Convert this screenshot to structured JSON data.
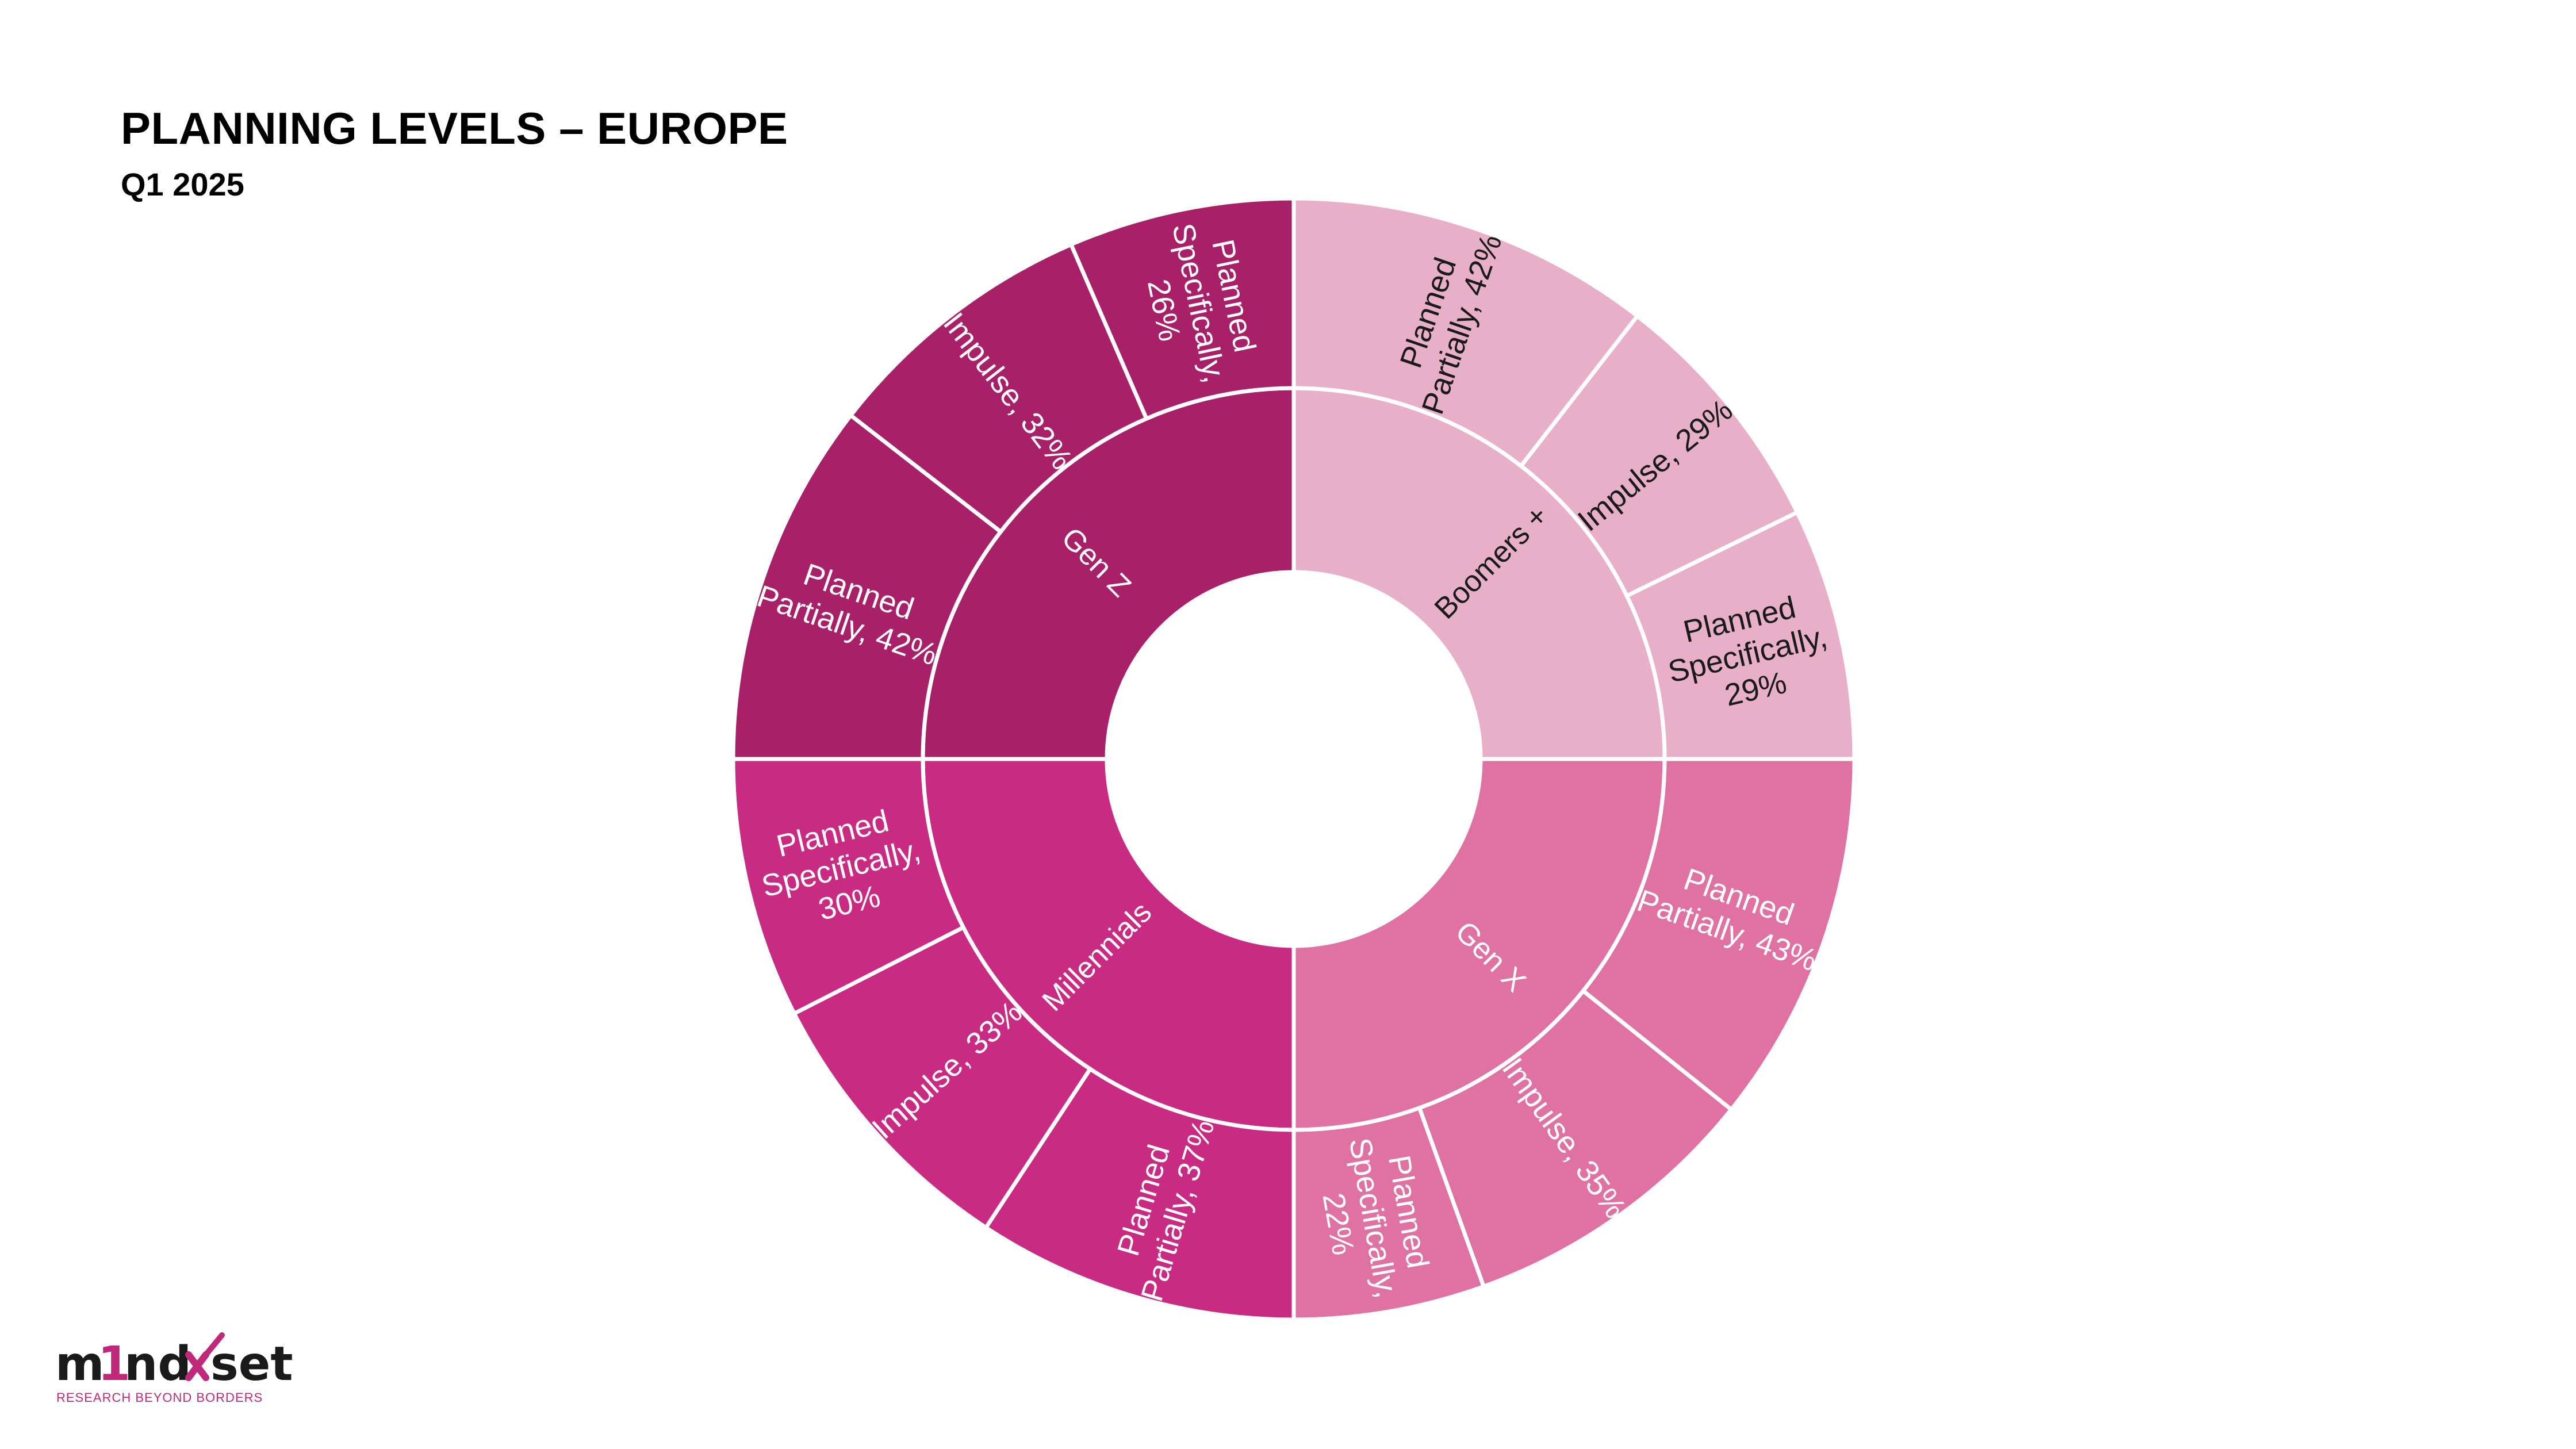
{
  "header": {
    "title": "PLANNING LEVELS – EUROPE",
    "subtitle": "Q1 2025"
  },
  "logo": {
    "wordmark": "m1nd-set",
    "tagline": "RESEARCH BEYOND BORDERS"
  },
  "chart_data": {
    "type": "sunburst",
    "title": "PLANNING LEVELS – EUROPE",
    "subtitle": "Q1 2025",
    "series": [
      {
        "name": "Boomers +",
        "color": "#e8b0c8",
        "text_color": "#1a1a1a",
        "value": 100,
        "children": [
          {
            "name": "Planned Partially",
            "value": 42
          },
          {
            "name": "Impulse",
            "value": 29
          },
          {
            "name": "Planned Specifically",
            "value": 29
          }
        ]
      },
      {
        "name": "Gen X",
        "color": "#df72a2",
        "text_color": "#ffffff",
        "value": 100,
        "children": [
          {
            "name": "Planned Partially",
            "value": 43
          },
          {
            "name": "Impulse",
            "value": 35
          },
          {
            "name": "Planned Specifically",
            "value": 22
          }
        ]
      },
      {
        "name": "Millennials",
        "color": "#c92a82",
        "text_color": "#ffffff",
        "value": 100,
        "children": [
          {
            "name": "Planned Partially",
            "value": 37
          },
          {
            "name": "Impulse",
            "value": 33
          },
          {
            "name": "Planned Specifically",
            "value": 30
          }
        ]
      },
      {
        "name": "Gen Z",
        "color": "#a82067",
        "text_color": "#ffffff",
        "value": 100,
        "children": [
          {
            "name": "Planned Partially",
            "value": 42
          },
          {
            "name": "Impulse",
            "value": 32
          },
          {
            "name": "Planned Specifically",
            "value": 26
          }
        ]
      }
    ]
  }
}
